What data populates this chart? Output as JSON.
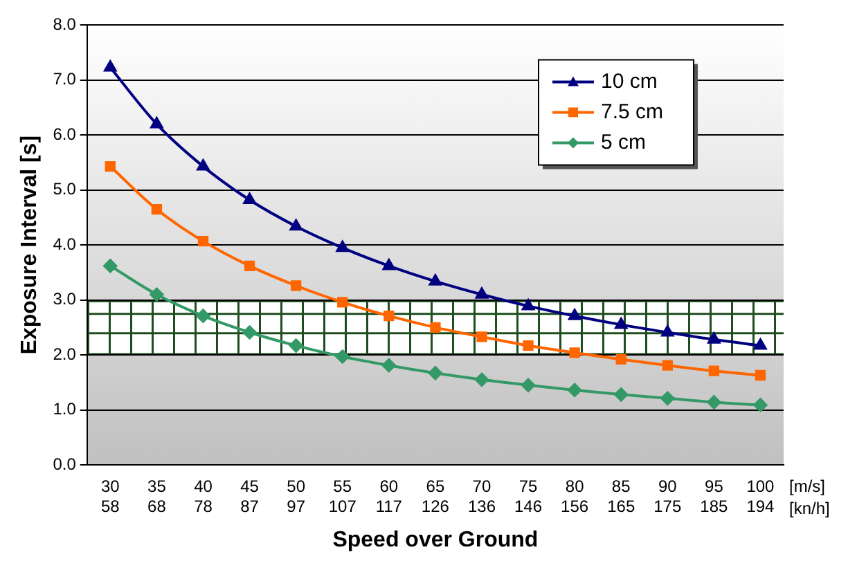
{
  "chart_data": {
    "type": "line",
    "xlabel": "Speed over Ground",
    "ylabel": "Exposure Interval [s]",
    "categories": [
      "30\n58",
      "35\n68",
      "40\n78",
      "45\n87",
      "50\n97",
      "55\n107",
      "60\n117",
      "65\n126",
      "70\n136",
      "75\n146",
      "80\n156",
      "85\n165",
      "90\n175",
      "95\n185",
      "100\n194"
    ],
    "series": [
      {
        "name": "10 cm",
        "color": "#000080",
        "marker": "triangle",
        "values": [
          7.23,
          6.2,
          5.43,
          4.82,
          4.34,
          3.95,
          3.62,
          3.34,
          3.1,
          2.89,
          2.71,
          2.55,
          2.41,
          2.28,
          2.17
        ]
      },
      {
        "name": "7.5 cm",
        "color": "#ff6600",
        "marker": "square",
        "values": [
          5.43,
          4.65,
          4.07,
          3.62,
          3.26,
          2.96,
          2.71,
          2.5,
          2.33,
          2.17,
          2.04,
          1.92,
          1.81,
          1.71,
          1.63
        ]
      },
      {
        "name": "5 cm",
        "color": "#339966",
        "marker": "diamond",
        "values": [
          3.62,
          3.1,
          2.71,
          2.41,
          2.17,
          1.97,
          1.81,
          1.67,
          1.55,
          1.45,
          1.36,
          1.28,
          1.21,
          1.14,
          1.09
        ]
      }
    ],
    "ylim": [
      0,
      8
    ],
    "yticks": [
      {
        "value": 0,
        "label": "0.0"
      },
      {
        "value": 1,
        "label": "1.0"
      },
      {
        "value": 2,
        "label": "2.0"
      },
      {
        "value": 3,
        "label": "3.0"
      },
      {
        "value": 4,
        "label": "4.0"
      },
      {
        "value": 5,
        "label": "5.0"
      },
      {
        "value": 6,
        "label": "6.0"
      },
      {
        "value": 7,
        "label": "7.0"
      },
      {
        "value": 8,
        "label": "8.0"
      }
    ],
    "bands": [
      {
        "axis": "y",
        "from": 2,
        "to": 3,
        "color": "#ffffff"
      }
    ],
    "annotations": [
      "[m/s]",
      "[kn/h]"
    ],
    "grid": "y",
    "legend": "top right",
    "line_style": "solid"
  }
}
